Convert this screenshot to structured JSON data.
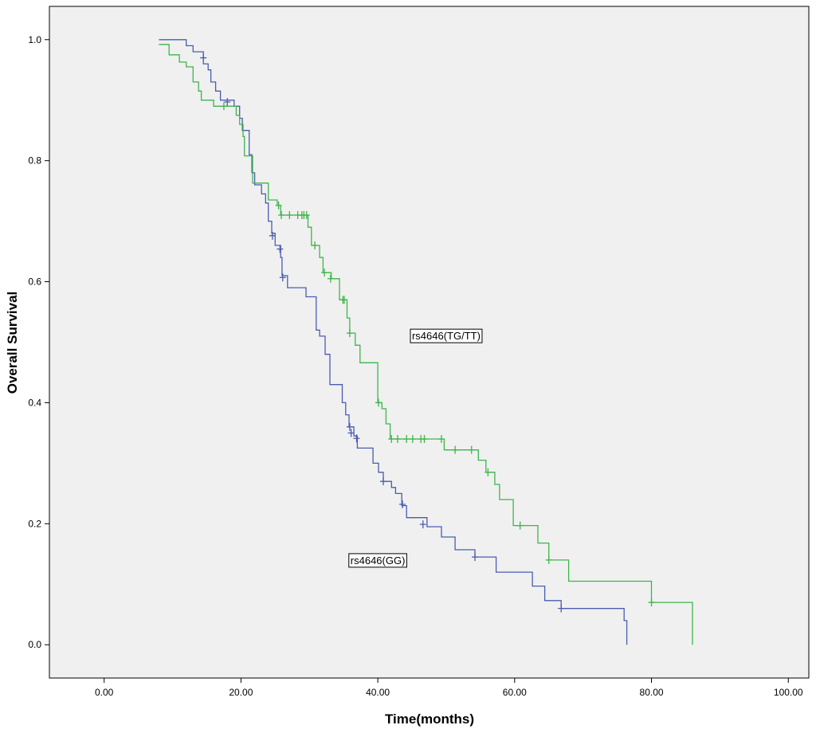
{
  "chart_data": {
    "type": "line",
    "title": "",
    "xlabel": "Time(months)",
    "ylabel": "Overall Survival",
    "xlim": [
      -8,
      103
    ],
    "ylim": [
      -0.055,
      1.055
    ],
    "x_ticks": [
      {
        "value": 0,
        "label": "0.00"
      },
      {
        "value": 20,
        "label": "20.00"
      },
      {
        "value": 40,
        "label": "40.00"
      },
      {
        "value": 60,
        "label": "60.00"
      },
      {
        "value": 80,
        "label": "80.00"
      },
      {
        "value": 100,
        "label": "100.00"
      }
    ],
    "y_ticks": [
      {
        "value": 0,
        "label": "0.0"
      },
      {
        "value": 0.2,
        "label": "0.2"
      },
      {
        "value": 0.4,
        "label": "0.4"
      },
      {
        "value": 0.6,
        "label": "0.6"
      },
      {
        "value": 0.8,
        "label": "0.8"
      },
      {
        "value": 1.0,
        "label": "1.0"
      }
    ],
    "grid": false,
    "background": "#f0f0f0",
    "series": [
      {
        "name": "rs4646(GG)",
        "color": "#4a5cb0",
        "label_at": [
          40,
          0.14
        ],
        "steps": [
          [
            8,
            1.0
          ],
          [
            12,
            0.99
          ],
          [
            13,
            0.98
          ],
          [
            14.5,
            0.96
          ],
          [
            15.2,
            0.95
          ],
          [
            15.6,
            0.93
          ],
          [
            16.3,
            0.915
          ],
          [
            17,
            0.9
          ],
          [
            19,
            0.89
          ],
          [
            19.8,
            0.87
          ],
          [
            20.2,
            0.85
          ],
          [
            21.2,
            0.81
          ],
          [
            21.6,
            0.78
          ],
          [
            22,
            0.76
          ],
          [
            23,
            0.745
          ],
          [
            23.6,
            0.73
          ],
          [
            24,
            0.7
          ],
          [
            24.5,
            0.68
          ],
          [
            25,
            0.66
          ],
          [
            25.8,
            0.64
          ],
          [
            26,
            0.61
          ],
          [
            26.8,
            0.59
          ],
          [
            29.5,
            0.575
          ],
          [
            31,
            0.52
          ],
          [
            31.5,
            0.51
          ],
          [
            32.3,
            0.48
          ],
          [
            33,
            0.43
          ],
          [
            34.8,
            0.4
          ],
          [
            35.3,
            0.38
          ],
          [
            35.8,
            0.36
          ],
          [
            36.5,
            0.345
          ],
          [
            37,
            0.325
          ],
          [
            39.3,
            0.3
          ],
          [
            40.1,
            0.285
          ],
          [
            40.8,
            0.27
          ],
          [
            42,
            0.26
          ],
          [
            42.6,
            0.25
          ],
          [
            43.5,
            0.23
          ],
          [
            44.2,
            0.21
          ],
          [
            47.2,
            0.195
          ],
          [
            49.3,
            0.178
          ],
          [
            51.3,
            0.157
          ],
          [
            54.2,
            0.145
          ],
          [
            57.3,
            0.12
          ],
          [
            62.6,
            0.097
          ],
          [
            64.4,
            0.073
          ],
          [
            66.8,
            0.06
          ],
          [
            76,
            0.04
          ],
          [
            76.4,
            0.0
          ]
        ],
        "censored": [
          [
            14.5,
            0.97
          ],
          [
            18,
            0.897
          ],
          [
            24.6,
            0.676
          ],
          [
            25.7,
            0.654
          ],
          [
            26.1,
            0.607
          ],
          [
            35.9,
            0.36
          ],
          [
            36.1,
            0.35
          ],
          [
            36.9,
            0.341
          ],
          [
            40.8,
            0.27
          ],
          [
            43.6,
            0.232
          ],
          [
            46.6,
            0.199
          ],
          [
            54.2,
            0.145
          ],
          [
            66.8,
            0.06
          ]
        ]
      },
      {
        "name": "rs4646(TG/TT)",
        "color": "#3db54a",
        "label_at": [
          50,
          0.511
        ],
        "steps": [
          [
            8,
            0.992
          ],
          [
            9.5,
            0.975
          ],
          [
            11,
            0.963
          ],
          [
            12,
            0.955
          ],
          [
            13,
            0.93
          ],
          [
            13.8,
            0.915
          ],
          [
            14.2,
            0.9
          ],
          [
            16,
            0.89
          ],
          [
            19.3,
            0.875
          ],
          [
            19.8,
            0.86
          ],
          [
            20.3,
            0.84
          ],
          [
            20.5,
            0.808
          ],
          [
            21.7,
            0.763
          ],
          [
            24,
            0.735
          ],
          [
            25.3,
            0.726
          ],
          [
            25.8,
            0.71
          ],
          [
            29.8,
            0.69
          ],
          [
            30.3,
            0.66
          ],
          [
            31.5,
            0.64
          ],
          [
            32,
            0.615
          ],
          [
            33.2,
            0.605
          ],
          [
            34.4,
            0.57
          ],
          [
            35.5,
            0.54
          ],
          [
            35.9,
            0.515
          ],
          [
            36.7,
            0.495
          ],
          [
            37.4,
            0.466
          ],
          [
            40,
            0.4
          ],
          [
            40.6,
            0.39
          ],
          [
            41.2,
            0.365
          ],
          [
            41.8,
            0.34
          ],
          [
            49.7,
            0.322
          ],
          [
            54.7,
            0.305
          ],
          [
            55.8,
            0.285
          ],
          [
            57.1,
            0.265
          ],
          [
            57.8,
            0.24
          ],
          [
            59.8,
            0.197
          ],
          [
            63.4,
            0.168
          ],
          [
            65,
            0.14
          ],
          [
            67.9,
            0.105
          ],
          [
            80,
            0.07
          ],
          [
            86,
            0.0
          ]
        ],
        "censored": [
          [
            17.5,
            0.89
          ],
          [
            25.5,
            0.726
          ],
          [
            25.9,
            0.71
          ],
          [
            27.1,
            0.71
          ],
          [
            28.3,
            0.71
          ],
          [
            28.9,
            0.71
          ],
          [
            29.2,
            0.71
          ],
          [
            29.6,
            0.71
          ],
          [
            30.8,
            0.66
          ],
          [
            32.2,
            0.615
          ],
          [
            33.1,
            0.605
          ],
          [
            34.9,
            0.57
          ],
          [
            35.1,
            0.57
          ],
          [
            35.9,
            0.515
          ],
          [
            40.1,
            0.4
          ],
          [
            42,
            0.34
          ],
          [
            42.9,
            0.34
          ],
          [
            44.2,
            0.34
          ],
          [
            45.1,
            0.34
          ],
          [
            46.3,
            0.34
          ],
          [
            46.8,
            0.34
          ],
          [
            49.3,
            0.34
          ],
          [
            51.3,
            0.322
          ],
          [
            53.7,
            0.322
          ],
          [
            56.1,
            0.285
          ],
          [
            60.8,
            0.197
          ],
          [
            65,
            0.14
          ],
          [
            80,
            0.07
          ]
        ]
      }
    ]
  }
}
